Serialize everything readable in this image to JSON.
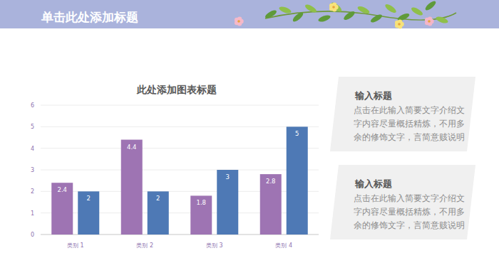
{
  "slide": {
    "title": "单击此处添加标题"
  },
  "cards": [
    {
      "title": "输入标题",
      "text": "点击在此输入简要文字介绍文字内容尽量概括精炼，不用多余的修饰文字，言简意赅说明"
    },
    {
      "title": "输入标题",
      "text": "点击在此输入简要文字介绍文字内容尽量概括精炼，不用多余的修饰文字，言简意赅说明"
    }
  ],
  "chart_data": {
    "type": "bar",
    "title": "此处添加图表标题",
    "categories": [
      "类别 1",
      "类别 2",
      "类别 3",
      "类别 4"
    ],
    "series": [
      {
        "color": "#9e74b3",
        "values": [
          2.4,
          4.4,
          1.8,
          2.8
        ]
      },
      {
        "color": "#4e79b5",
        "values": [
          2,
          2,
          3,
          5
        ]
      }
    ],
    "ylim": [
      0,
      6
    ],
    "yticks": [
      0,
      1,
      2,
      3,
      4,
      5,
      6
    ],
    "grid": true,
    "data_labels": true
  }
}
